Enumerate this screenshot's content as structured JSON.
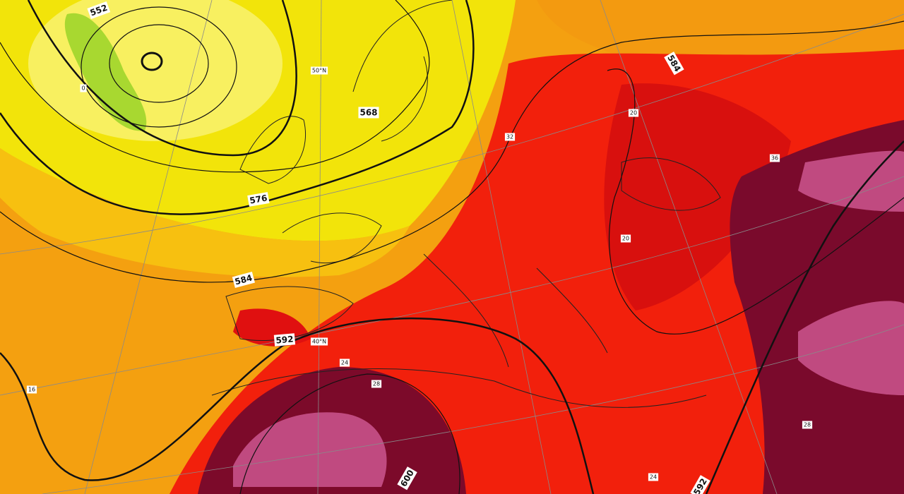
{
  "map": {
    "contour_labels": [
      "552",
      "568",
      "576",
      "584",
      "584",
      "592",
      "600",
      "592",
      "50°N",
      "40°N",
      "0",
      "16",
      "20",
      "20",
      "24",
      "24",
      "28",
      "28",
      "32",
      "36"
    ]
  }
}
